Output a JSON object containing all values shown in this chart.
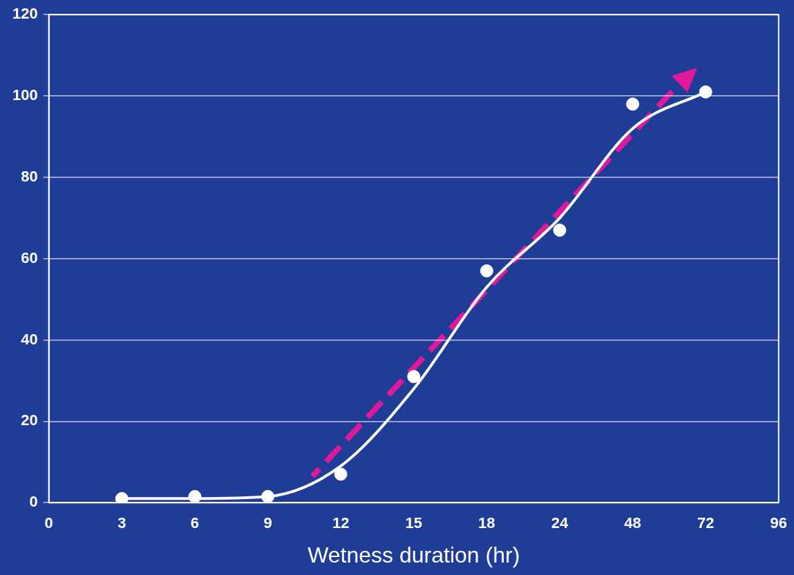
{
  "chart_data": {
    "type": "scatter",
    "xlabel": "Wetness duration (hr)",
    "categories": [
      "0",
      "3",
      "6",
      "9",
      "12",
      "15",
      "18",
      "24",
      "48",
      "72",
      "96"
    ],
    "series": [
      {
        "color": "#ffffff",
        "values": [
          null,
          1,
          1.5,
          1.5,
          7,
          31,
          57,
          67,
          98,
          101,
          null
        ]
      },
      {
        "type": "line",
        "color": "#ffffff",
        "marker": "none",
        "values": [
          null,
          1,
          1,
          1.5,
          9,
          28,
          53,
          70,
          92,
          101,
          null
        ]
      }
    ],
    "ylim": [
      0,
      120
    ],
    "yticks": [
      0,
      20,
      40,
      60,
      80,
      100,
      120
    ],
    "grid": "y",
    "marker": "circle",
    "line_style": "solid"
  }
}
